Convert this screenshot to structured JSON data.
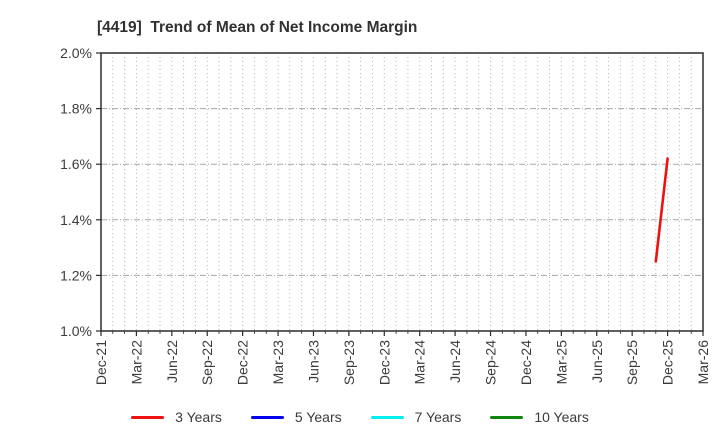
{
  "chart_data": {
    "type": "line",
    "title": "[4419]  Trend of Mean of Net Income Margin",
    "xlabel": "",
    "ylabel": "",
    "x_start": "2021-12",
    "x_end": "2026-03",
    "x_tick_labels": [
      "Dec-21",
      "Mar-22",
      "Jun-22",
      "Sep-22",
      "Dec-22",
      "Mar-23",
      "Jun-23",
      "Sep-23",
      "Dec-23",
      "Mar-24",
      "Jun-24",
      "Sep-24",
      "Dec-24",
      "Mar-25",
      "Jun-25",
      "Sep-25",
      "Dec-25",
      "Mar-26"
    ],
    "y_tick_labels": [
      "1.0%",
      "1.2%",
      "1.4%",
      "1.6%",
      "1.8%",
      "2.0%"
    ],
    "y_tick_values": [
      1.0,
      1.2,
      1.4,
      1.6,
      1.8,
      2.0
    ],
    "ylim": [
      1.0,
      2.0
    ],
    "y_unit": "%",
    "grid": true,
    "legend_position": "bottom",
    "series": [
      {
        "name": "3 Years",
        "color": "#ee1111",
        "points": [
          {
            "x": "2025-11",
            "y": 1.25
          },
          {
            "x": "2025-12",
            "y": 1.62
          }
        ]
      },
      {
        "name": "5 Years",
        "color": "#0000ee",
        "points": []
      },
      {
        "name": "7 Years",
        "color": "#00eeee",
        "points": []
      },
      {
        "name": "10 Years",
        "color": "#0e870e",
        "points": []
      }
    ]
  }
}
